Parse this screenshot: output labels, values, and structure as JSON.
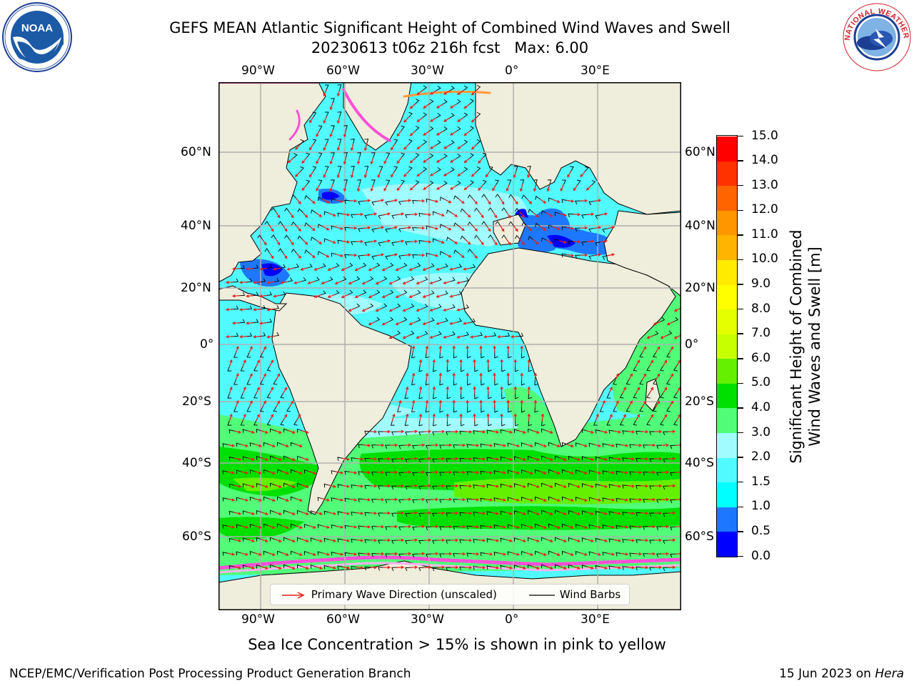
{
  "header": {
    "title_line1": "GEFS MEAN Atlantic Significant Height of Combined Wind Waves and Swell",
    "title_line2": "20230613 t06z 216h fcst   Max: 6.00"
  },
  "logos": {
    "left": {
      "text": "NOAA",
      "icon": "noaa-logo"
    },
    "right": {
      "text": "NATIONAL WEATHER SERVICE",
      "icon": "nws-logo"
    }
  },
  "map": {
    "lon_labels": [
      "90°W",
      "60°W",
      "30°W",
      "0°",
      "30°E"
    ],
    "lat_labels_left": [
      "60°N",
      "40°N",
      "20°N",
      "0°",
      "20°S",
      "40°S",
      "60°S"
    ],
    "lat_labels_right": [
      "60°N",
      "40°N",
      "20°N",
      "0°",
      "20°S",
      "40°S",
      "60°S"
    ],
    "colors": {
      "land": "#efeddb",
      "grid": "#b0b0b0",
      "arrows": "#e8201a",
      "barbs": "#000000"
    }
  },
  "legend": {
    "wave_direction": "Primary Wave Direction (unscaled)",
    "wind_barbs": "Wind Barbs"
  },
  "colorbar": {
    "title_line1": "Significant Height of Combined",
    "title_line2": "Wind Waves and Swell [m]",
    "labels": [
      "0.0",
      "0.5",
      "1.0",
      "1.5",
      "2.0",
      "3.0",
      "4.0",
      "5.0",
      "6.0",
      "7.0",
      "8.0",
      "9.0",
      "10.0",
      "11.0",
      "12.0",
      "13.0",
      "14.0",
      "15.0"
    ],
    "colors": [
      "#0000ff",
      "#1e78ff",
      "#00ffff",
      "#50faff",
      "#a0fcff",
      "#50fc78",
      "#00e000",
      "#64f000",
      "#c8ff00",
      "#e6ff00",
      "#ffff00",
      "#ffeb00",
      "#ffb400",
      "#ff9600",
      "#ff6400",
      "#ff3200",
      "#ff0000"
    ]
  },
  "caption": "Sea Ice Concentration > 15% is shown in pink to yellow",
  "footer": {
    "left": "NCEP/EMC/Verification Post Processing Product Generation Branch",
    "right_date": "15 Jun 2023 on ",
    "right_host": "Hera"
  }
}
